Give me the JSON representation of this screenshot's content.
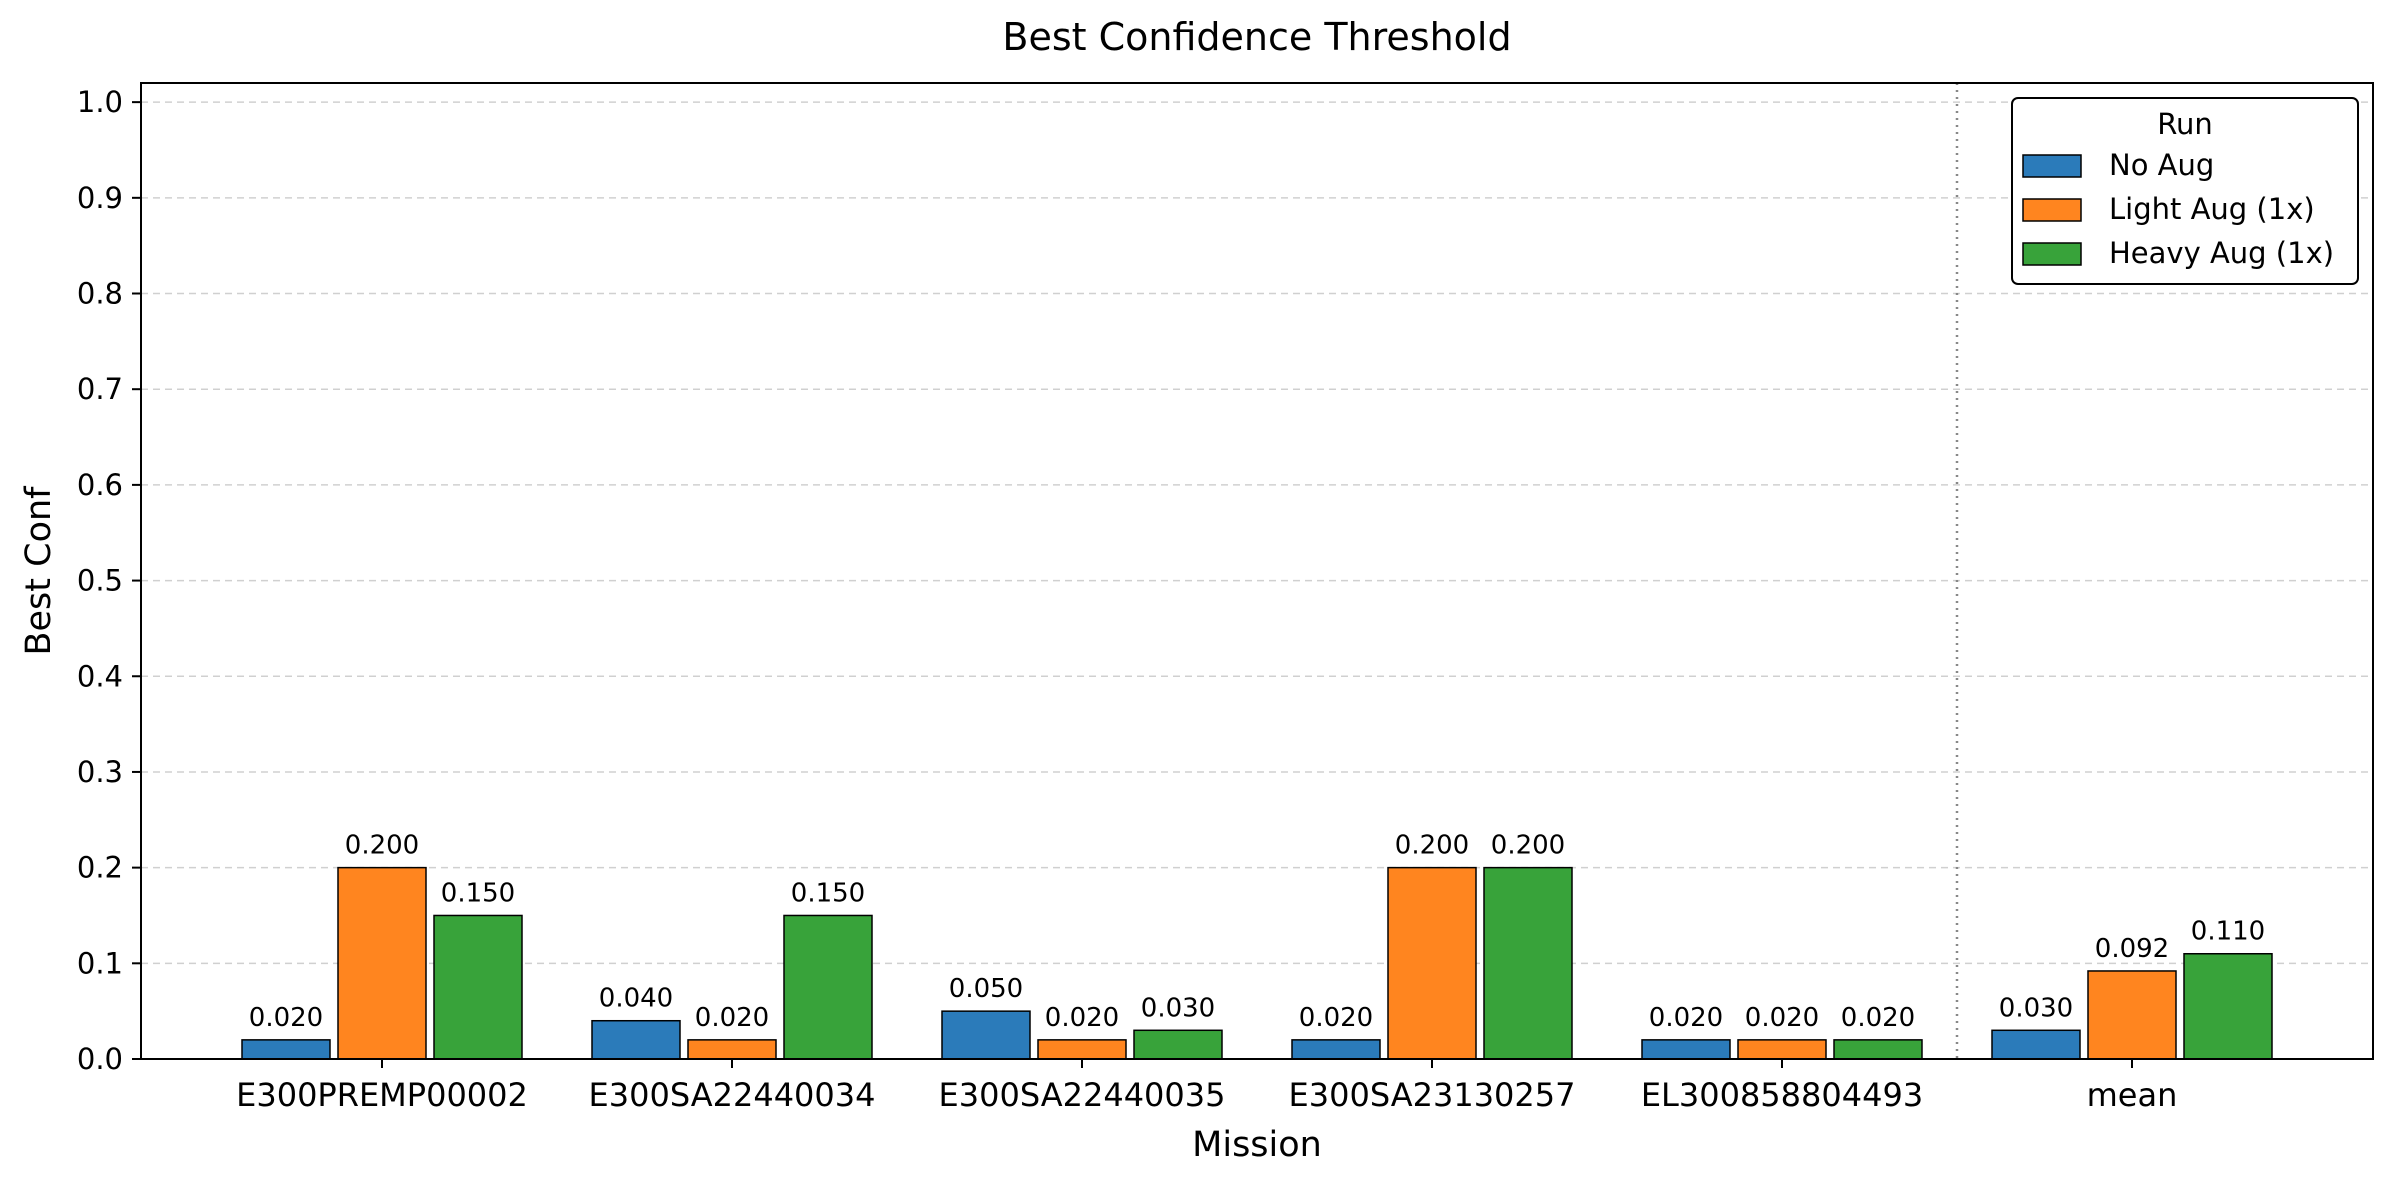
{
  "chart_data": {
    "type": "bar",
    "title": "Best Confidence Threshold",
    "xlabel": "Mission",
    "ylabel": "Best Conf",
    "ylim": [
      0,
      1.02
    ],
    "yticks": [
      "0.0",
      "0.1",
      "0.2",
      "0.3",
      "0.4",
      "0.5",
      "0.6",
      "0.7",
      "0.8",
      "0.9",
      "1.0"
    ],
    "grid": "y-dashed",
    "categories": [
      "E300PREMP00002",
      "E300SA22440034",
      "E300SA22440035",
      "E300SA23130257",
      "EL300858804493",
      "mean"
    ],
    "separator_before": "mean",
    "legend": {
      "title": "Run",
      "placement": "top-right"
    },
    "series": [
      {
        "name": "No Aug",
        "color": "#2b7bba",
        "values": [
          0.02,
          0.04,
          0.05,
          0.02,
          0.02,
          0.03
        ],
        "labels": [
          "0.020",
          "0.040",
          "0.050",
          "0.020",
          "0.020",
          "0.030"
        ]
      },
      {
        "name": "Light Aug (1x)",
        "color": "#ff851f",
        "values": [
          0.2,
          0.02,
          0.02,
          0.2,
          0.02,
          0.092
        ],
        "labels": [
          "0.200",
          "0.020",
          "0.020",
          "0.200",
          "0.020",
          "0.092"
        ]
      },
      {
        "name": "Heavy Aug (1x)",
        "color": "#38a33a",
        "values": [
          0.15,
          0.15,
          0.03,
          0.2,
          0.02,
          0.11
        ],
        "labels": [
          "0.150",
          "0.150",
          "0.030",
          "0.200",
          "0.020",
          "0.110"
        ]
      }
    ]
  }
}
